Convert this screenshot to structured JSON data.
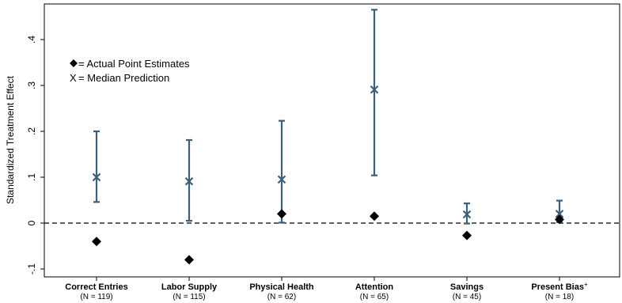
{
  "chart_data": {
    "type": "scatter",
    "ylabel": "Standardized Treatment Effect",
    "ylim": [
      -0.12,
      0.47
    ],
    "yticks": [
      {
        "value": -0.1,
        "label": "-.1"
      },
      {
        "value": 0,
        "label": "0"
      },
      {
        "value": 0.1,
        "label": ".1"
      },
      {
        "value": 0.2,
        "label": ".2"
      },
      {
        "value": 0.3,
        "label": ".3"
      },
      {
        "value": 0.4,
        "label": ".4"
      }
    ],
    "reference_line": 0,
    "grid": false,
    "legend_position": "top-left",
    "legend": [
      {
        "symbol": "◆",
        "text": " = Actual Point Estimates"
      },
      {
        "symbol": "X",
        "text": " = Median Prediction"
      }
    ],
    "colors": {
      "prediction": "#3d5f78",
      "estimate": "#000000",
      "axis": "#000000"
    },
    "categories": [
      {
        "name": "Correct Entries",
        "n": "(N = 119)",
        "actual": -0.04,
        "median": 0.1,
        "ci_low": 0.046,
        "ci_high": 0.2
      },
      {
        "name": "Labor Supply",
        "n": "(N = 115)",
        "actual": -0.08,
        "median": 0.091,
        "ci_low": 0.005,
        "ci_high": 0.181
      },
      {
        "name": "Physical Health",
        "n": "(N = 62)",
        "actual": 0.02,
        "median": 0.095,
        "ci_low": 0.001,
        "ci_high": 0.223
      },
      {
        "name": "Attention",
        "n": "(N = 65)",
        "actual": 0.015,
        "median": 0.291,
        "ci_low": 0.104,
        "ci_high": 0.465
      },
      {
        "name": "Savings",
        "n": "(N = 45)",
        "actual": -0.027,
        "median": 0.019,
        "ci_low": -0.001,
        "ci_high": 0.043
      },
      {
        "name": "Present Bias",
        "superscript": "+",
        "n": "(N = 18)",
        "actual": 0.008,
        "median": 0.02,
        "ci_low": 0.002,
        "ci_high": 0.049
      }
    ]
  }
}
